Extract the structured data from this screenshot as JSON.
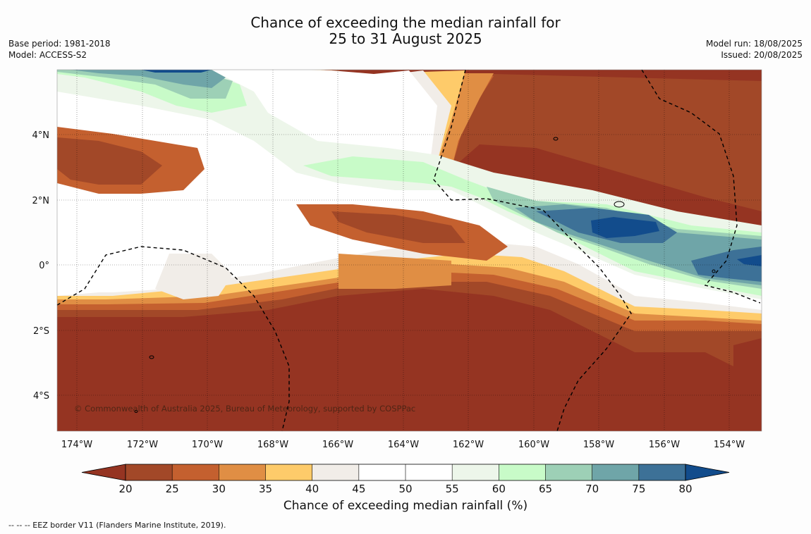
{
  "title": {
    "line1": "Chance of exceeding the median rainfall for",
    "line2": "25 to 31 August 2025"
  },
  "meta_left": {
    "base_period": "Base period: 1981-2018",
    "model": "Model: ACCESS-S2"
  },
  "meta_right": {
    "model_run": "Model run: 18/08/2025",
    "issued": "Issued: 20/08/2025"
  },
  "map": {
    "lon_ticks": [
      "174°W",
      "172°W",
      "170°W",
      "168°W",
      "166°W",
      "164°W",
      "162°W",
      "160°W",
      "158°W",
      "156°W",
      "154°W"
    ],
    "lat_ticks": [
      "4°N",
      "2°N",
      "0°",
      "2°S",
      "4°S"
    ],
    "copyright": "© Commonwealth of Australia 2025, Bureau of Meteorology, supported by COSPPac"
  },
  "colorbar": {
    "ticks": [
      "20",
      "25",
      "30",
      "35",
      "40",
      "45",
      "50",
      "55",
      "60",
      "65",
      "70",
      "75",
      "80"
    ],
    "colors": [
      "#a24828",
      "#c4602f",
      "#e08e44",
      "#fecb6a",
      "#f1ede8",
      "#ffffff",
      "#ffffff",
      "#edf6ea",
      "#c8fbc8",
      "#9dd0b6",
      "#6fa5a8",
      "#3d7197"
    ],
    "under_color": "#953422",
    "over_color": "#124c8c",
    "label": "Chance of exceeding median rainfall (%)"
  },
  "footnote": "--  --  -- EEZ border V11 (Flanders Marine Institute, 2019)."
}
